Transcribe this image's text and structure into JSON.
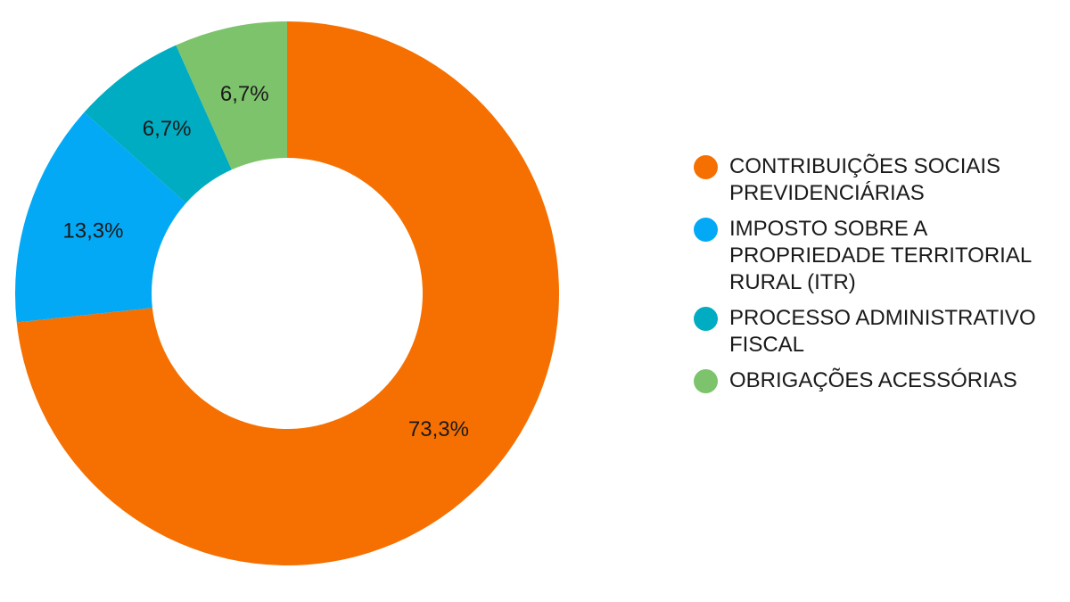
{
  "chart_data": {
    "type": "pie",
    "donut": true,
    "legend_position": "right",
    "slices": [
      {
        "name": "CONTRIBUIÇÕES SOCIAIS PREVIDENCIÁRIAS",
        "value": 73.3,
        "label": "73,3%",
        "color": "#f57000"
      },
      {
        "name": "IMPOSTO SOBRE A PROPRIEDADE TERRITORIAL RURAL (ITR)",
        "value": 13.3,
        "label": "13,3%",
        "color": "#03a9f4"
      },
      {
        "name": "PROCESSO ADMINISTRATIVO FISCAL",
        "value": 6.7,
        "label": "6,7%",
        "color": "#00acc1"
      },
      {
        "name": "OBRIGAÇÕES ACESSÓRIAS",
        "value": 6.7,
        "label": "6,7%",
        "color": "#7cc36b"
      }
    ]
  }
}
